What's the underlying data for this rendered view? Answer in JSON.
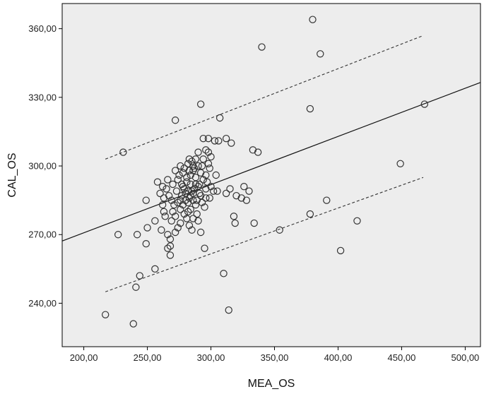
{
  "chart_data": {
    "type": "scatter",
    "title": "",
    "xlabel": "MEA_OS",
    "ylabel": "CAL_OS",
    "xlim": [
      183,
      512
    ],
    "ylim": [
      221,
      371
    ],
    "x_ticks": [
      200,
      250,
      300,
      350,
      400,
      450,
      500
    ],
    "y_ticks": [
      240,
      270,
      300,
      330,
      360
    ],
    "x_tick_labels": [
      "200,00",
      "250,00",
      "300,00",
      "350,00",
      "400,00",
      "450,00",
      "500,00"
    ],
    "y_tick_labels": [
      "240,00",
      "270,00",
      "300,00",
      "330,00",
      "360,00"
    ],
    "grid": false,
    "plot_background": "#ededed",
    "marker_color": "#333333",
    "points": [
      [
        380,
        364
      ],
      [
        340,
        352
      ],
      [
        386,
        349
      ],
      [
        292,
        327
      ],
      [
        468,
        327
      ],
      [
        378,
        325
      ],
      [
        307,
        321
      ],
      [
        272,
        320
      ],
      [
        231,
        306
      ],
      [
        333,
        307
      ],
      [
        337,
        306
      ],
      [
        449,
        301
      ],
      [
        294,
        312
      ],
      [
        298,
        312
      ],
      [
        303,
        311
      ],
      [
        312,
        312
      ],
      [
        316,
        310
      ],
      [
        306,
        311
      ],
      [
        296,
        307
      ],
      [
        298,
        306
      ],
      [
        300,
        304
      ],
      [
        288,
        303
      ],
      [
        285,
        302
      ],
      [
        290,
        300
      ],
      [
        282,
        301
      ],
      [
        279,
        299
      ],
      [
        286,
        298
      ],
      [
        292,
        297
      ],
      [
        275,
        296
      ],
      [
        281,
        295
      ],
      [
        288,
        295
      ],
      [
        294,
        294
      ],
      [
        297,
        293
      ],
      [
        270,
        292
      ],
      [
        278,
        291
      ],
      [
        284,
        292
      ],
      [
        290,
        291
      ],
      [
        296,
        290
      ],
      [
        302,
        289
      ],
      [
        265,
        290
      ],
      [
        273,
        289
      ],
      [
        280,
        288
      ],
      [
        286,
        288
      ],
      [
        292,
        287
      ],
      [
        299,
        286
      ],
      [
        263,
        286
      ],
      [
        269,
        285
      ],
      [
        276,
        285
      ],
      [
        282,
        284
      ],
      [
        288,
        283
      ],
      [
        295,
        282
      ],
      [
        276,
        281
      ],
      [
        282,
        280
      ],
      [
        289,
        279
      ],
      [
        270,
        280
      ],
      [
        263,
        280
      ],
      [
        258,
        293
      ],
      [
        249,
        285
      ],
      [
        269,
        276
      ],
      [
        276,
        275
      ],
      [
        283,
        274
      ],
      [
        290,
        276
      ],
      [
        256,
        276
      ],
      [
        261,
        272
      ],
      [
        266,
        270
      ],
      [
        272,
        271
      ],
      [
        285,
        272
      ],
      [
        292,
        271
      ],
      [
        250,
        273
      ],
      [
        242,
        270
      ],
      [
        227,
        270
      ],
      [
        249,
        266
      ],
      [
        268,
        265
      ],
      [
        295,
        264
      ],
      [
        266,
        264
      ],
      [
        268,
        261
      ],
      [
        256,
        255
      ],
      [
        244,
        252
      ],
      [
        241,
        247
      ],
      [
        310,
        253
      ],
      [
        305,
        289
      ],
      [
        312,
        288
      ],
      [
        315,
        290
      ],
      [
        320,
        287
      ],
      [
        318,
        278
      ],
      [
        324,
        286
      ],
      [
        328,
        285
      ],
      [
        326,
        291
      ],
      [
        330,
        289
      ],
      [
        319,
        275
      ],
      [
        334,
        275
      ],
      [
        354,
        272
      ],
      [
        378,
        279
      ],
      [
        391,
        285
      ],
      [
        415,
        276
      ],
      [
        402,
        263
      ],
      [
        314,
        237
      ],
      [
        217,
        235
      ],
      [
        239,
        231
      ],
      [
        284,
        296
      ],
      [
        281,
        293
      ],
      [
        279,
        290
      ],
      [
        277,
        287
      ],
      [
        283,
        286
      ],
      [
        287,
        290
      ],
      [
        291,
        288
      ],
      [
        285,
        289
      ],
      [
        280,
        285
      ],
      [
        274,
        284
      ],
      [
        271,
        283
      ],
      [
        278,
        283
      ],
      [
        284,
        281
      ],
      [
        289,
        285
      ],
      [
        293,
        284
      ],
      [
        296,
        286
      ],
      [
        300,
        291
      ],
      [
        304,
        296
      ],
      [
        299,
        299
      ],
      [
        294,
        303
      ],
      [
        287,
        299
      ],
      [
        283,
        298
      ],
      [
        278,
        297
      ],
      [
        274,
        294
      ],
      [
        267,
        287
      ],
      [
        262,
        283
      ],
      [
        264,
        278
      ],
      [
        272,
        278
      ],
      [
        279,
        279
      ],
      [
        286,
        277
      ],
      [
        281,
        277
      ],
      [
        274,
        273
      ],
      [
        268,
        268
      ],
      [
        286,
        300
      ],
      [
        283,
        303
      ],
      [
        290,
        306
      ],
      [
        276,
        300
      ],
      [
        272,
        298
      ],
      [
        266,
        294
      ],
      [
        262,
        291
      ],
      [
        260,
        288
      ],
      [
        291,
        292
      ],
      [
        288,
        292
      ],
      [
        284,
        287
      ],
      [
        286,
        285
      ],
      [
        282,
        289
      ],
      [
        277,
        292
      ],
      [
        296,
        296
      ],
      [
        293,
        300
      ],
      [
        298,
        301
      ]
    ],
    "fit_line": [
      [
        183,
        267.2
      ],
      [
        512,
        336.5
      ]
    ],
    "ci_upper": [
      [
        217,
        303
      ],
      [
        467,
        357
      ]
    ],
    "ci_lower": [
      [
        217,
        245
      ],
      [
        467,
        295
      ]
    ]
  }
}
